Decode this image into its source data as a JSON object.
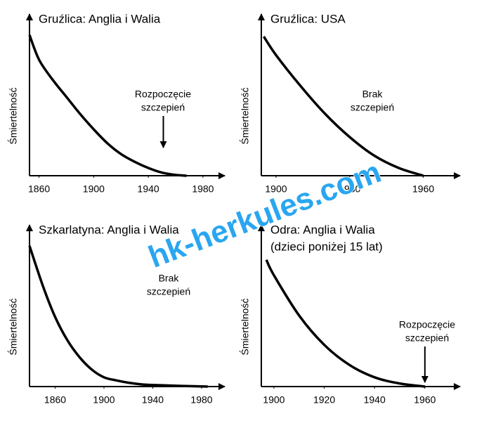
{
  "chart_data": [
    {
      "type": "line",
      "title": "Gruźlica: Anglia i Walia",
      "y_label": "Śmiertelność",
      "x": [
        1853,
        1860,
        1870,
        1880,
        1890,
        1900,
        1910,
        1920,
        1930,
        1940,
        1950,
        1960,
        1968
      ],
      "values": [
        91,
        75,
        62,
        51,
        40,
        30,
        21,
        14,
        9,
        5,
        2,
        0.5,
        0
      ],
      "xlim": [
        1853,
        1996
      ],
      "ylim": [
        0,
        100
      ],
      "xticks": [
        1860,
        1900,
        1940,
        1980
      ],
      "annotation": {
        "lines": [
          "Rozpoczęcie",
          "szczepień"
        ],
        "x": 1951
      }
    },
    {
      "type": "line",
      "title": "Gruźlica: USA",
      "y_label": "Śmiertelność",
      "x": [
        1895,
        1900,
        1910,
        1920,
        1930,
        1940,
        1950,
        1960
      ],
      "values": [
        90,
        78,
        58,
        40,
        25,
        13,
        5,
        0
      ],
      "xlim": [
        1894,
        1975
      ],
      "ylim": [
        0,
        100
      ],
      "xticks": [
        1900,
        1930,
        1960
      ],
      "annotation": {
        "lines": [
          "Brak",
          "szczepień"
        ]
      }
    },
    {
      "type": "line",
      "title": "Szkarlatyna: Anglia i Walia",
      "y_label": "Śmiertelność",
      "x": [
        1839,
        1850,
        1860,
        1870,
        1880,
        1890,
        1900,
        1910,
        1920,
        1930,
        1940,
        1960,
        1985
      ],
      "values": [
        91,
        65,
        45,
        30,
        19,
        11,
        6,
        4,
        2.5,
        1.5,
        1,
        0.5,
        0
      ],
      "xlim": [
        1839,
        1999
      ],
      "ylim": [
        0,
        100
      ],
      "xticks": [
        1860,
        1900,
        1940,
        1980
      ],
      "annotation": {
        "lines": [
          "Brak",
          "szczepień"
        ]
      }
    },
    {
      "type": "line",
      "title": "Odra: Anglia i Walia",
      "subtitle": "(dzieci poniżej 15 lat)",
      "y_label": "Śmiertelność",
      "x": [
        1897,
        1900,
        1910,
        1920,
        1930,
        1940,
        1950,
        1960
      ],
      "values": [
        82,
        72,
        46,
        27,
        14,
        6,
        2,
        0
      ],
      "xlim": [
        1895,
        1974
      ],
      "ylim": [
        0,
        100
      ],
      "xticks": [
        1900,
        1920,
        1940,
        1960
      ],
      "annotation": {
        "lines": [
          "Rozpoczęcie",
          "szczepień"
        ],
        "x": 1960
      }
    }
  ],
  "watermark": "hk-herkules.com"
}
